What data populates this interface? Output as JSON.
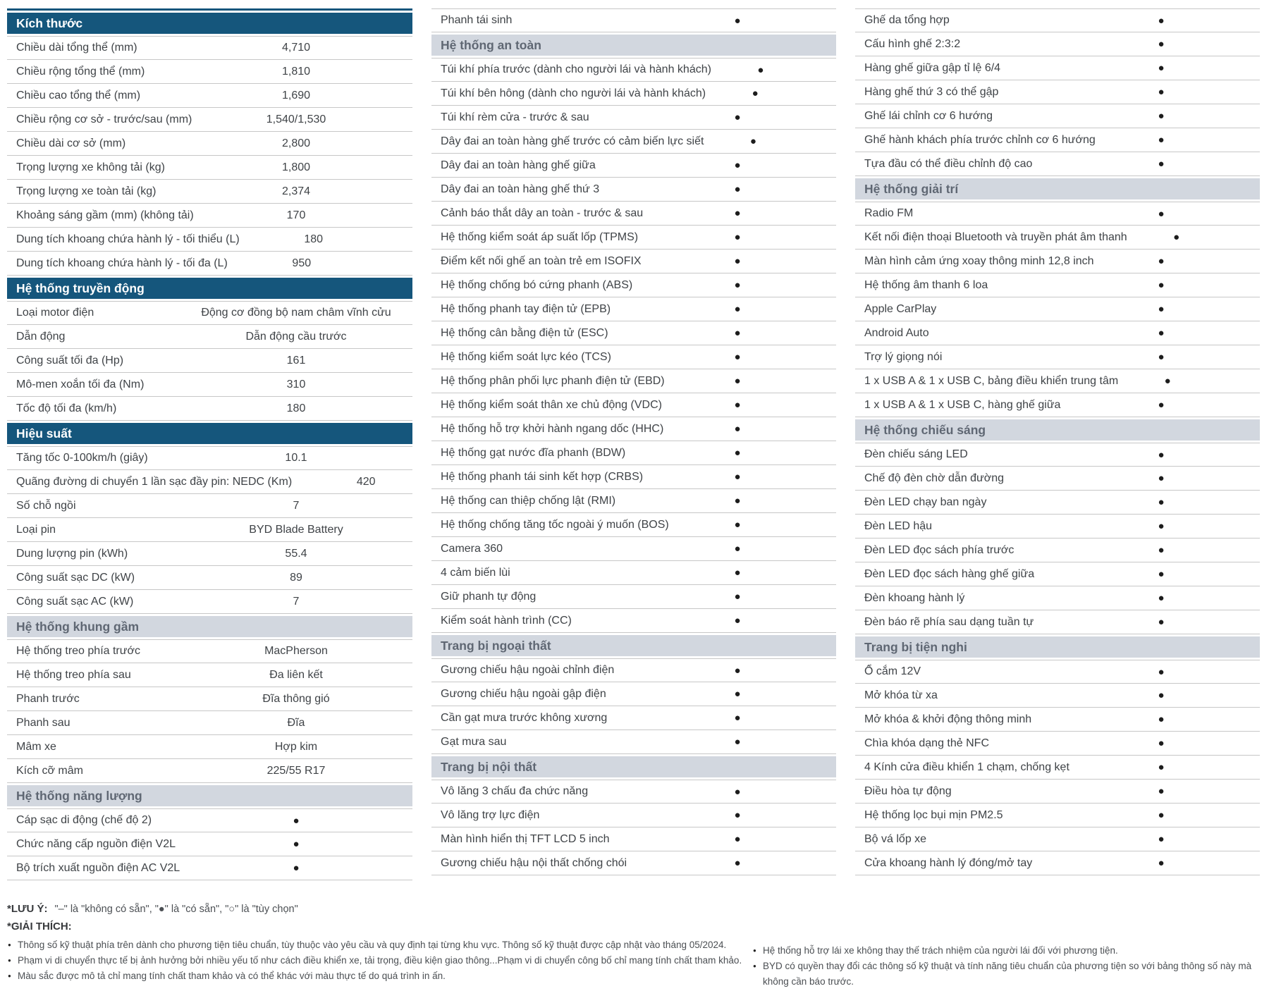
{
  "colors": {
    "header_dark_bg": "#15567c",
    "header_dark_text": "#ffffff",
    "header_light_bg": "#d2d7df",
    "header_light_text": "#5f6773",
    "line": "#c7c7c7",
    "text": "#3f4347",
    "footnote": "#4b4f53",
    "dot": "#1d1d1d"
  },
  "legend_symbols": {
    "not_available": "–",
    "standard": "●",
    "optional": "○"
  },
  "columns": [
    {
      "rows": [
        {
          "h": "Kích thước",
          "style": "dark"
        },
        {
          "l": "Chiều dài tổng thể (mm)",
          "v": "4,710"
        },
        {
          "l": "Chiều rộng tổng thể (mm)",
          "v": "1,810"
        },
        {
          "l": "Chiều cao tổng thể (mm)",
          "v": "1,690"
        },
        {
          "l": "Chiều rộng cơ sở - trước/sau (mm)",
          "v": "1,540/1,530"
        },
        {
          "l": "Chiều dài cơ sở (mm)",
          "v": "2,800"
        },
        {
          "l": "Trọng lượng xe không tải (kg)",
          "v": "1,800"
        },
        {
          "l": "Trọng lượng xe toàn tải (kg)",
          "v": "2,374"
        },
        {
          "l": "Khoảng sáng gầm (mm) (không tải)",
          "v": "170"
        },
        {
          "l": "Dung tích khoang chứa hành lý - tối thiểu (L)",
          "v": "180"
        },
        {
          "l": "Dung tích khoang chứa hành lý - tối đa (L)",
          "v": "950"
        },
        {
          "h": "Hệ thống truyền động",
          "style": "dark"
        },
        {
          "l": "Loại motor điện",
          "v": "Động cơ đồng bộ nam châm vĩnh cửu"
        },
        {
          "l": "Dẫn động",
          "v": "Dẫn động cầu trước"
        },
        {
          "l": "Công suất tối đa (Hp)",
          "v": "161"
        },
        {
          "l": "Mô-men xoắn tối đa (Nm)",
          "v": "310"
        },
        {
          "l": "Tốc độ tối đa (km/h)",
          "v": "180"
        },
        {
          "h": "Hiệu suất",
          "style": "dark"
        },
        {
          "l": "Tăng tốc 0-100km/h (giây)",
          "v": "10.1"
        },
        {
          "l": "Quãng đường di chuyển 1 lần sạc đầy pin: NEDC (Km)",
          "v": "420"
        },
        {
          "l": "Số chỗ ngồi",
          "v": "7"
        },
        {
          "l": "Loại pin",
          "v": "BYD Blade Battery"
        },
        {
          "l": "Dung lượng pin (kWh)",
          "v": "55.4"
        },
        {
          "l": "Công suất sạc DC (kW)",
          "v": "89"
        },
        {
          "l": "Công suất sạc AC (kW)",
          "v": "7"
        },
        {
          "h": "Hệ thống khung gầm",
          "style": "light"
        },
        {
          "l": "Hệ thống treo phía trước",
          "v": "MacPherson"
        },
        {
          "l": "Hệ thống treo phía sau",
          "v": "Đa liên kết"
        },
        {
          "l": "Phanh trước",
          "v": "Đĩa thông gió"
        },
        {
          "l": "Phanh sau",
          "v": "Đĩa"
        },
        {
          "l": "Mâm xe",
          "v": "Hợp kim"
        },
        {
          "l": "Kích cỡ mâm",
          "v": "225/55 R17"
        },
        {
          "h": "Hệ thống năng lượng",
          "style": "light"
        },
        {
          "l": "Cáp sạc di động (chế độ 2)",
          "v": "●"
        },
        {
          "l": "Chức năng cấp nguồn điện V2L",
          "v": "●"
        },
        {
          "l": "Bộ trích xuất nguồn điện AC V2L",
          "v": "●"
        }
      ]
    },
    {
      "rows": [
        {
          "l": "Phanh tái sinh",
          "v": "●"
        },
        {
          "h": "Hệ thống an toàn",
          "style": "light"
        },
        {
          "l": "Túi khí phía trước (dành cho người lái và hành khách)",
          "v": "●"
        },
        {
          "l": "Túi khí bên hông (dành cho người lái và hành khách)",
          "v": "●"
        },
        {
          "l": "Túi khí rèm cửa - trước & sau",
          "v": "●"
        },
        {
          "l": "Dây đai an toàn hàng ghế trước có cảm biến lực siết",
          "v": "●"
        },
        {
          "l": "Dây đai an toàn hàng ghế giữa",
          "v": "●"
        },
        {
          "l": "Dây đai an toàn hàng ghế thứ 3",
          "v": "●"
        },
        {
          "l": "Cảnh báo thắt dây an toàn - trước & sau",
          "v": "●"
        },
        {
          "l": "Hệ thống kiểm soát áp suất lốp (TPMS)",
          "v": "●"
        },
        {
          "l": "Điểm kết nối ghế an toàn trẻ em ISOFIX",
          "v": "●"
        },
        {
          "l": "Hệ thống chống bó cứng phanh (ABS)",
          "v": "●"
        },
        {
          "l": "Hệ thống phanh tay điện tử (EPB)",
          "v": "●"
        },
        {
          "l": "Hệ thống cân bằng điện tử (ESC)",
          "v": "●"
        },
        {
          "l": "Hệ thống kiểm soát lực kéo (TCS)",
          "v": "●"
        },
        {
          "l": "Hệ thống phân phối lực phanh điện tử (EBD)",
          "v": "●"
        },
        {
          "l": "Hệ thống kiểm soát thân xe chủ động (VDC)",
          "v": "●"
        },
        {
          "l": "Hệ thống hỗ trợ khởi hành ngang dốc (HHC)",
          "v": "●"
        },
        {
          "l": "Hệ thống gạt nước đĩa phanh (BDW)",
          "v": "●"
        },
        {
          "l": "Hệ thống phanh tái sinh kết hợp (CRBS)",
          "v": "●"
        },
        {
          "l": "Hệ thống can thiệp chống lật (RMI)",
          "v": "●"
        },
        {
          "l": "Hệ thống chống tăng tốc ngoài ý muốn (BOS)",
          "v": "●"
        },
        {
          "l": "Camera 360",
          "v": "●"
        },
        {
          "l": "4 cảm biến lùi",
          "v": "●"
        },
        {
          "l": "Giữ phanh tự động",
          "v": "●"
        },
        {
          "l": "Kiểm soát hành trình (CC)",
          "v": "●"
        },
        {
          "h": "Trang bị ngoại thất",
          "style": "light"
        },
        {
          "l": "Gương chiếu hậu ngoài chỉnh điện",
          "v": "●"
        },
        {
          "l": "Gương chiếu hậu ngoài gập điện",
          "v": "●"
        },
        {
          "l": "Cần gạt mưa trước không xương",
          "v": "●"
        },
        {
          "l": "Gạt mưa sau",
          "v": "●"
        },
        {
          "h": "Trang bị nội thất",
          "style": "light"
        },
        {
          "l": "Vô lăng 3 chấu đa chức năng",
          "v": "●"
        },
        {
          "l": "Vô lăng trợ lực điện",
          "v": "●"
        },
        {
          "l": "Màn hình hiển thị TFT LCD 5 inch",
          "v": "●"
        },
        {
          "l": "Gương chiếu hậu nội thất chống chói",
          "v": "●"
        }
      ]
    },
    {
      "rows": [
        {
          "l": "Ghế da tổng hợp",
          "v": "●"
        },
        {
          "l": "Cấu hình ghế 2:3:2",
          "v": "●"
        },
        {
          "l": "Hàng ghế giữa gập tỉ lệ 6/4",
          "v": "●"
        },
        {
          "l": "Hàng ghế thứ 3 có thể gập",
          "v": "●"
        },
        {
          "l": "Ghế lái chỉnh cơ 6 hướng",
          "v": "●"
        },
        {
          "l": "Ghế hành khách phía trước chỉnh cơ 6 hướng",
          "v": "●"
        },
        {
          "l": "Tựa đầu có thể điều chỉnh độ cao",
          "v": "●"
        },
        {
          "h": "Hệ thống giải trí",
          "style": "light"
        },
        {
          "l": "Radio FM",
          "v": "●"
        },
        {
          "l": "Kết nối điện thoại Bluetooth và truyền phát âm thanh",
          "v": "●"
        },
        {
          "l": "Màn hình cảm ứng xoay thông minh 12,8 inch",
          "v": "●"
        },
        {
          "l": "Hệ thống âm thanh 6 loa",
          "v": "●"
        },
        {
          "l": "Apple CarPlay",
          "v": "●"
        },
        {
          "l": "Android Auto",
          "v": "●"
        },
        {
          "l": "Trợ lý giọng nói",
          "v": "●"
        },
        {
          "l": "1 x USB A & 1 x USB C, bảng điều khiển trung tâm",
          "v": "●"
        },
        {
          "l": "1 x USB A & 1 x USB C, hàng ghế giữa",
          "v": "●"
        },
        {
          "h": "Hệ thống chiếu sáng",
          "style": "light"
        },
        {
          "l": "Đèn chiếu sáng LED",
          "v": "●"
        },
        {
          "l": "Chế độ đèn chờ dẫn đường",
          "v": "●"
        },
        {
          "l": "Đèn LED chạy ban ngày",
          "v": "●"
        },
        {
          "l": "Đèn LED hậu",
          "v": "●"
        },
        {
          "l": "Đèn LED đọc sách phía trước",
          "v": "●"
        },
        {
          "l": "Đèn LED đọc sách hàng ghế giữa",
          "v": "●"
        },
        {
          "l": "Đèn khoang hành lý",
          "v": "●"
        },
        {
          "l": "Đèn báo rẽ phía sau dạng tuần tự",
          "v": "●"
        },
        {
          "h": "Trang bị tiện nghi",
          "style": "light"
        },
        {
          "l": "Ổ cắm 12V",
          "v": "●"
        },
        {
          "l": "Mở khóa từ xa",
          "v": "●"
        },
        {
          "l": "Mở khóa & khởi động thông minh",
          "v": "●"
        },
        {
          "l": "Chìa khóa dạng thẻ NFC",
          "v": "●"
        },
        {
          "l": "4 Kính cửa điều khiển 1 chạm, chống kẹt",
          "v": "●"
        },
        {
          "l": "Điều hòa tự động",
          "v": "●"
        },
        {
          "l": "Hệ thống lọc bụi mịn PM2.5",
          "v": "●"
        },
        {
          "l": "Bộ vá lốp xe",
          "v": "●"
        },
        {
          "l": "Cửa khoang hành lý đóng/mở tay",
          "v": "●"
        }
      ]
    }
  ],
  "footer": {
    "note_label": "*LƯU Ý:",
    "note_text": "\"–\" là \"không có sẵn\", \"●\" là \"có sẵn\", \"○\" là \"tùy chọn\"",
    "explain_label": "*GIẢI THÍCH:",
    "left_bullets": [
      "Thông số kỹ thuật phía trên dành cho phương tiện tiêu chuẩn, tùy thuộc vào yêu cầu và quy định tại từng khu vực. Thông số kỹ thuật được cập nhật vào tháng 05/2024.",
      "Phạm vi di chuyển thực tế bị ảnh hưởng bởi nhiều yếu tố như cách điều khiển xe, tải trọng, điều kiện giao thông...Phạm vi di chuyển công bố chỉ mang tính chất tham khảo.",
      "Màu sắc được mô tả chỉ mang tính chất tham khảo và có thể khác với màu thực tế do quá trình in ấn."
    ],
    "right_bullets": [
      "Hệ thống hỗ trợ lái xe không thay thế trách nhiệm của người lái đối với phương tiện.",
      "BYD có quyền thay đổi các thông số kỹ thuật và tính năng tiêu chuẩn của phương tiện so với bảng thông số này mà không cần báo trước."
    ]
  }
}
